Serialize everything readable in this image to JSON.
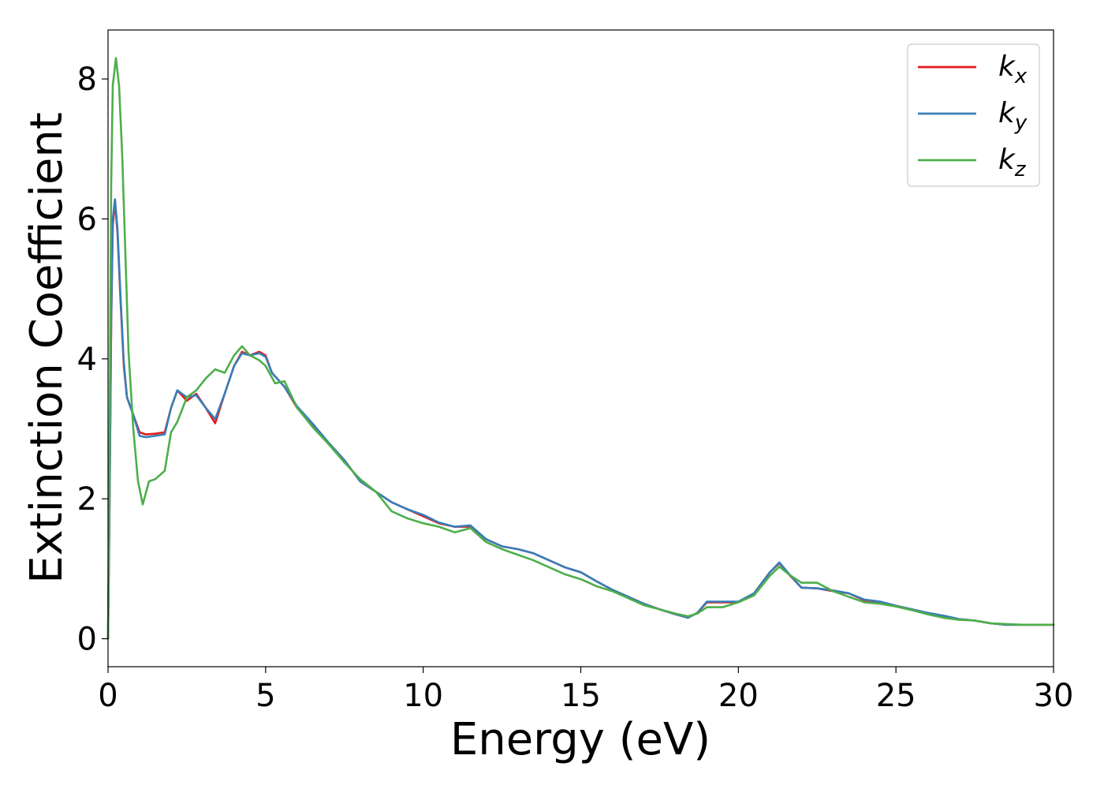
{
  "chart_data": {
    "type": "line",
    "title": "",
    "xlabel": "Energy (eV)",
    "ylabel": "Extinction Coefficient",
    "xlim": [
      0,
      30
    ],
    "ylim": [
      -0.4,
      8.7
    ],
    "xticks": [
      0,
      5,
      10,
      15,
      20,
      25,
      30
    ],
    "yticks": [
      0,
      2,
      4,
      6,
      8
    ],
    "grid": false,
    "legend_position": "top-right",
    "series": [
      {
        "name": "k_x",
        "label_base": "k",
        "label_sub": "x",
        "color": "#e41a1c",
        "points": [
          [
            0,
            0
          ],
          [
            0.05,
            2.0
          ],
          [
            0.1,
            4.5
          ],
          [
            0.15,
            5.9
          ],
          [
            0.22,
            6.25
          ],
          [
            0.3,
            5.8
          ],
          [
            0.4,
            4.8
          ],
          [
            0.5,
            3.9
          ],
          [
            0.6,
            3.45
          ],
          [
            0.8,
            3.2
          ],
          [
            1.0,
            2.95
          ],
          [
            1.2,
            2.92
          ],
          [
            1.5,
            2.93
          ],
          [
            1.8,
            2.95
          ],
          [
            2.0,
            3.3
          ],
          [
            2.2,
            3.55
          ],
          [
            2.5,
            3.4
          ],
          [
            2.8,
            3.5
          ],
          [
            3.1,
            3.3
          ],
          [
            3.4,
            3.08
          ],
          [
            3.7,
            3.5
          ],
          [
            4.0,
            3.9
          ],
          [
            4.25,
            4.1
          ],
          [
            4.5,
            4.05
          ],
          [
            4.8,
            4.1
          ],
          [
            5.0,
            4.05
          ],
          [
            5.2,
            3.8
          ],
          [
            5.6,
            3.6
          ],
          [
            6.0,
            3.3
          ],
          [
            6.5,
            3.05
          ],
          [
            7.0,
            2.8
          ],
          [
            7.5,
            2.55
          ],
          [
            8.0,
            2.25
          ],
          [
            8.5,
            2.1
          ],
          [
            9.0,
            1.95
          ],
          [
            9.5,
            1.85
          ],
          [
            10.0,
            1.75
          ],
          [
            10.5,
            1.65
          ],
          [
            11.0,
            1.6
          ],
          [
            11.5,
            1.6
          ],
          [
            12.0,
            1.42
          ],
          [
            12.5,
            1.32
          ],
          [
            13.0,
            1.28
          ],
          [
            13.5,
            1.22
          ],
          [
            14.0,
            1.12
          ],
          [
            14.5,
            1.02
          ],
          [
            15.0,
            0.95
          ],
          [
            15.5,
            0.82
          ],
          [
            16.0,
            0.7
          ],
          [
            16.5,
            0.6
          ],
          [
            17.0,
            0.5
          ],
          [
            17.5,
            0.42
          ],
          [
            18.0,
            0.35
          ],
          [
            18.4,
            0.3
          ],
          [
            18.7,
            0.37
          ],
          [
            19.0,
            0.52
          ],
          [
            19.5,
            0.52
          ],
          [
            20.0,
            0.52
          ],
          [
            20.5,
            0.65
          ],
          [
            21.0,
            0.95
          ],
          [
            21.3,
            1.08
          ],
          [
            21.6,
            0.92
          ],
          [
            22.0,
            0.73
          ],
          [
            22.5,
            0.72
          ],
          [
            23.0,
            0.68
          ],
          [
            23.5,
            0.65
          ],
          [
            24.0,
            0.55
          ],
          [
            24.5,
            0.52
          ],
          [
            25.0,
            0.47
          ],
          [
            25.5,
            0.42
          ],
          [
            26.0,
            0.36
          ],
          [
            26.5,
            0.33
          ],
          [
            27.0,
            0.28
          ],
          [
            27.5,
            0.26
          ],
          [
            28.0,
            0.22
          ],
          [
            28.5,
            0.2
          ],
          [
            29.0,
            0.2
          ],
          [
            29.5,
            0.2
          ],
          [
            30.0,
            0.2
          ]
        ]
      },
      {
        "name": "k_y",
        "label_base": "k",
        "label_sub": "y",
        "color": "#377eb8",
        "points": [
          [
            0,
            0
          ],
          [
            0.05,
            2.1
          ],
          [
            0.1,
            4.6
          ],
          [
            0.15,
            6.0
          ],
          [
            0.22,
            6.28
          ],
          [
            0.3,
            5.85
          ],
          [
            0.4,
            4.85
          ],
          [
            0.5,
            3.95
          ],
          [
            0.6,
            3.45
          ],
          [
            0.8,
            3.2
          ],
          [
            1.0,
            2.9
          ],
          [
            1.2,
            2.88
          ],
          [
            1.5,
            2.9
          ],
          [
            1.8,
            2.92
          ],
          [
            2.0,
            3.3
          ],
          [
            2.2,
            3.55
          ],
          [
            2.5,
            3.45
          ],
          [
            2.8,
            3.48
          ],
          [
            3.1,
            3.3
          ],
          [
            3.4,
            3.14
          ],
          [
            3.7,
            3.5
          ],
          [
            4.0,
            3.9
          ],
          [
            4.25,
            4.08
          ],
          [
            4.5,
            4.05
          ],
          [
            4.8,
            4.08
          ],
          [
            5.0,
            4.03
          ],
          [
            5.2,
            3.8
          ],
          [
            5.6,
            3.6
          ],
          [
            6.0,
            3.32
          ],
          [
            6.5,
            3.07
          ],
          [
            7.0,
            2.8
          ],
          [
            7.5,
            2.55
          ],
          [
            8.0,
            2.25
          ],
          [
            8.5,
            2.1
          ],
          [
            9.0,
            1.95
          ],
          [
            9.5,
            1.85
          ],
          [
            10.0,
            1.77
          ],
          [
            10.5,
            1.66
          ],
          [
            11.0,
            1.6
          ],
          [
            11.5,
            1.62
          ],
          [
            12.0,
            1.42
          ],
          [
            12.5,
            1.32
          ],
          [
            13.0,
            1.28
          ],
          [
            13.5,
            1.22
          ],
          [
            14.0,
            1.12
          ],
          [
            14.5,
            1.02
          ],
          [
            15.0,
            0.95
          ],
          [
            15.5,
            0.82
          ],
          [
            16.0,
            0.7
          ],
          [
            16.5,
            0.6
          ],
          [
            17.0,
            0.5
          ],
          [
            17.5,
            0.42
          ],
          [
            18.0,
            0.35
          ],
          [
            18.4,
            0.3
          ],
          [
            18.7,
            0.37
          ],
          [
            19.0,
            0.53
          ],
          [
            19.5,
            0.53
          ],
          [
            20.0,
            0.53
          ],
          [
            20.5,
            0.65
          ],
          [
            21.0,
            0.95
          ],
          [
            21.3,
            1.09
          ],
          [
            21.6,
            0.93
          ],
          [
            22.0,
            0.73
          ],
          [
            22.5,
            0.72
          ],
          [
            23.0,
            0.69
          ],
          [
            23.5,
            0.65
          ],
          [
            24.0,
            0.56
          ],
          [
            24.5,
            0.53
          ],
          [
            25.0,
            0.47
          ],
          [
            25.5,
            0.42
          ],
          [
            26.0,
            0.37
          ],
          [
            26.5,
            0.33
          ],
          [
            27.0,
            0.28
          ],
          [
            27.5,
            0.26
          ],
          [
            28.0,
            0.22
          ],
          [
            28.5,
            0.2
          ],
          [
            29.0,
            0.2
          ],
          [
            29.5,
            0.2
          ],
          [
            30.0,
            0.2
          ]
        ]
      },
      {
        "name": "k_z",
        "label_base": "k",
        "label_sub": "z",
        "color": "#4daf4a",
        "points": [
          [
            0,
            0
          ],
          [
            0.05,
            3.0
          ],
          [
            0.1,
            6.5
          ],
          [
            0.15,
            7.9
          ],
          [
            0.25,
            8.3
          ],
          [
            0.35,
            7.9
          ],
          [
            0.45,
            6.9
          ],
          [
            0.55,
            5.5
          ],
          [
            0.65,
            4.1
          ],
          [
            0.8,
            3.0
          ],
          [
            0.95,
            2.25
          ],
          [
            1.1,
            1.92
          ],
          [
            1.3,
            2.25
          ],
          [
            1.5,
            2.28
          ],
          [
            1.8,
            2.4
          ],
          [
            2.0,
            2.95
          ],
          [
            2.2,
            3.1
          ],
          [
            2.5,
            3.45
          ],
          [
            2.8,
            3.55
          ],
          [
            3.1,
            3.72
          ],
          [
            3.4,
            3.85
          ],
          [
            3.7,
            3.8
          ],
          [
            4.0,
            4.05
          ],
          [
            4.25,
            4.18
          ],
          [
            4.5,
            4.05
          ],
          [
            4.8,
            3.98
          ],
          [
            5.0,
            3.9
          ],
          [
            5.3,
            3.65
          ],
          [
            5.6,
            3.68
          ],
          [
            6.0,
            3.3
          ],
          [
            6.5,
            3.02
          ],
          [
            7.0,
            2.78
          ],
          [
            7.5,
            2.52
          ],
          [
            8.0,
            2.28
          ],
          [
            8.5,
            2.1
          ],
          [
            9.0,
            1.82
          ],
          [
            9.5,
            1.72
          ],
          [
            10.0,
            1.65
          ],
          [
            10.5,
            1.6
          ],
          [
            11.0,
            1.52
          ],
          [
            11.5,
            1.58
          ],
          [
            12.0,
            1.38
          ],
          [
            12.5,
            1.28
          ],
          [
            13.0,
            1.2
          ],
          [
            13.5,
            1.12
          ],
          [
            14.0,
            1.02
          ],
          [
            14.5,
            0.92
          ],
          [
            15.0,
            0.85
          ],
          [
            15.5,
            0.75
          ],
          [
            16.0,
            0.68
          ],
          [
            16.5,
            0.58
          ],
          [
            17.0,
            0.48
          ],
          [
            17.5,
            0.42
          ],
          [
            18.0,
            0.36
          ],
          [
            18.4,
            0.32
          ],
          [
            18.7,
            0.36
          ],
          [
            19.0,
            0.45
          ],
          [
            19.5,
            0.45
          ],
          [
            20.0,
            0.52
          ],
          [
            20.5,
            0.62
          ],
          [
            21.0,
            0.9
          ],
          [
            21.3,
            1.03
          ],
          [
            21.6,
            0.92
          ],
          [
            22.0,
            0.8
          ],
          [
            22.5,
            0.8
          ],
          [
            23.0,
            0.68
          ],
          [
            23.5,
            0.6
          ],
          [
            24.0,
            0.52
          ],
          [
            24.5,
            0.5
          ],
          [
            25.0,
            0.46
          ],
          [
            25.5,
            0.41
          ],
          [
            26.0,
            0.35
          ],
          [
            26.5,
            0.3
          ],
          [
            27.0,
            0.27
          ],
          [
            27.5,
            0.26
          ],
          [
            28.0,
            0.22
          ],
          [
            28.5,
            0.21
          ],
          [
            29.0,
            0.2
          ],
          [
            29.5,
            0.2
          ],
          [
            30.0,
            0.2
          ]
        ]
      }
    ]
  }
}
